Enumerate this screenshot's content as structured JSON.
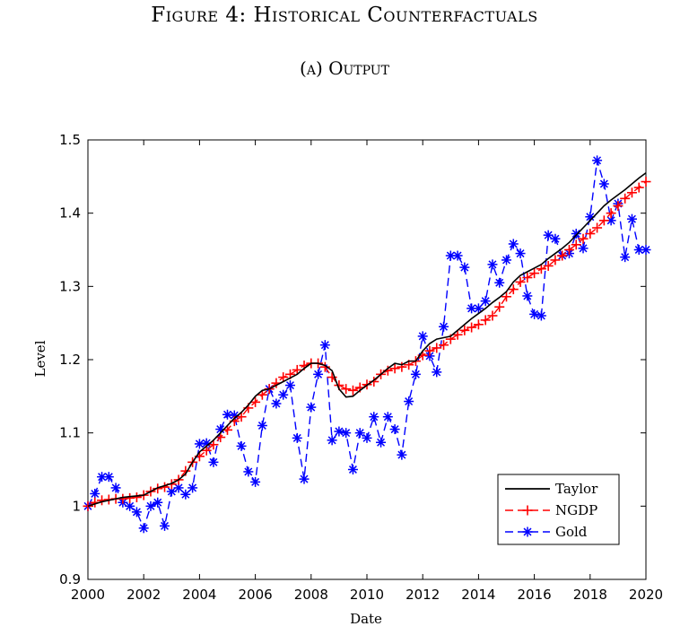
{
  "figure_title": "Figure 4: Historical Counterfactuals",
  "panel_title": "(a) Output",
  "chart_data": {
    "type": "line",
    "title": "Output",
    "xlabel": "Date",
    "ylabel": "Level",
    "xlim": [
      2000,
      2020
    ],
    "ylim": [
      0.9,
      1.5
    ],
    "xticks": [
      2000,
      2002,
      2004,
      2006,
      2008,
      2010,
      2012,
      2014,
      2016,
      2018,
      2020
    ],
    "yticks": [
      0.9,
      1.0,
      1.1,
      1.2,
      1.3,
      1.4,
      1.5
    ],
    "xtick_labels": [
      "2000",
      "2002",
      "2004",
      "2006",
      "2008",
      "2010",
      "2012",
      "2014",
      "2016",
      "2018",
      "2020"
    ],
    "ytick_labels": [
      "0.9",
      "1",
      "1.1",
      "1.2",
      "1.3",
      "1.4",
      "1.5"
    ],
    "grid": false,
    "legend_position": "bottom-right",
    "x": [
      2000.0,
      2000.25,
      2000.5,
      2000.75,
      2001.0,
      2001.25,
      2001.5,
      2001.75,
      2002.0,
      2002.25,
      2002.5,
      2002.75,
      2003.0,
      2003.25,
      2003.5,
      2003.75,
      2004.0,
      2004.25,
      2004.5,
      2004.75,
      2005.0,
      2005.25,
      2005.5,
      2005.75,
      2006.0,
      2006.25,
      2006.5,
      2006.75,
      2007.0,
      2007.25,
      2007.5,
      2007.75,
      2008.0,
      2008.25,
      2008.5,
      2008.75,
      2009.0,
      2009.25,
      2009.5,
      2009.75,
      2010.0,
      2010.25,
      2010.5,
      2010.75,
      2011.0,
      2011.25,
      2011.5,
      2011.75,
      2012.0,
      2012.25,
      2012.5,
      2012.75,
      2013.0,
      2013.25,
      2013.5,
      2013.75,
      2014.0,
      2014.25,
      2014.5,
      2014.75,
      2015.0,
      2015.25,
      2015.5,
      2015.75,
      2016.0,
      2016.25,
      2016.5,
      2016.75,
      2017.0,
      2017.25,
      2017.5,
      2017.75,
      2018.0,
      2018.25,
      2018.5,
      2018.75,
      2019.0,
      2019.25,
      2019.5,
      2019.75,
      2020.0
    ],
    "series": [
      {
        "name": "Taylor",
        "color": "#000000",
        "style": "solid",
        "marker": "none",
        "values": [
          1.0,
          1.003,
          1.006,
          1.008,
          1.01,
          1.012,
          1.013,
          1.014,
          1.015,
          1.02,
          1.025,
          1.028,
          1.031,
          1.036,
          1.044,
          1.06,
          1.074,
          1.082,
          1.09,
          1.1,
          1.11,
          1.12,
          1.128,
          1.138,
          1.15,
          1.158,
          1.16,
          1.165,
          1.17,
          1.175,
          1.18,
          1.188,
          1.195,
          1.195,
          1.192,
          1.185,
          1.16,
          1.149,
          1.15,
          1.158,
          1.165,
          1.172,
          1.18,
          1.188,
          1.195,
          1.193,
          1.198,
          1.198,
          1.212,
          1.222,
          1.228,
          1.23,
          1.232,
          1.24,
          1.248,
          1.256,
          1.263,
          1.27,
          1.278,
          1.285,
          1.293,
          1.306,
          1.315,
          1.32,
          1.325,
          1.33,
          1.338,
          1.345,
          1.352,
          1.36,
          1.37,
          1.38,
          1.39,
          1.4,
          1.41,
          1.418,
          1.425,
          1.432,
          1.44,
          1.448,
          1.455
        ]
      },
      {
        "name": "NGDP",
        "color": "#ff0000",
        "style": "dashed",
        "marker": "plus",
        "values": [
          1.0,
          1.005,
          1.008,
          1.009,
          1.01,
          1.01,
          1.011,
          1.012,
          1.015,
          1.02,
          1.024,
          1.026,
          1.03,
          1.036,
          1.048,
          1.06,
          1.068,
          1.076,
          1.084,
          1.094,
          1.104,
          1.116,
          1.122,
          1.134,
          1.142,
          1.152,
          1.16,
          1.168,
          1.176,
          1.18,
          1.186,
          1.192,
          1.195,
          1.195,
          1.19,
          1.176,
          1.165,
          1.16,
          1.158,
          1.162,
          1.166,
          1.17,
          1.18,
          1.185,
          1.188,
          1.19,
          1.193,
          1.198,
          1.206,
          1.212,
          1.216,
          1.22,
          1.228,
          1.234,
          1.24,
          1.244,
          1.248,
          1.254,
          1.26,
          1.272,
          1.286,
          1.296,
          1.306,
          1.312,
          1.318,
          1.324,
          1.328,
          1.336,
          1.342,
          1.35,
          1.357,
          1.365,
          1.372,
          1.38,
          1.39,
          1.4,
          1.41,
          1.42,
          1.428,
          1.435,
          1.443
        ]
      },
      {
        "name": "Gold",
        "color": "#0000ff",
        "style": "dashed",
        "marker": "asterisk",
        "values": [
          1.0,
          1.017,
          1.04,
          1.04,
          1.025,
          1.005,
          1.0,
          0.992,
          0.97,
          1.0,
          1.005,
          0.973,
          1.02,
          1.025,
          1.016,
          1.025,
          1.085,
          1.086,
          1.06,
          1.105,
          1.125,
          1.124,
          1.082,
          1.047,
          1.033,
          1.11,
          1.16,
          1.14,
          1.152,
          1.165,
          1.093,
          1.037,
          1.135,
          1.18,
          1.22,
          1.09,
          1.102,
          1.1,
          1.05,
          1.1,
          1.093,
          1.122,
          1.087,
          1.122,
          1.105,
          1.07,
          1.143,
          1.18,
          1.232,
          1.205,
          1.183,
          1.245,
          1.342,
          1.342,
          1.326,
          1.27,
          1.27,
          1.28,
          1.33,
          1.305,
          1.336,
          1.358,
          1.345,
          1.287,
          1.262,
          1.26,
          1.37,
          1.365,
          1.342,
          1.345,
          1.372,
          1.352,
          1.395,
          1.472,
          1.44,
          1.39,
          1.413,
          1.34,
          1.392,
          1.35,
          1.35
        ]
      }
    ]
  }
}
